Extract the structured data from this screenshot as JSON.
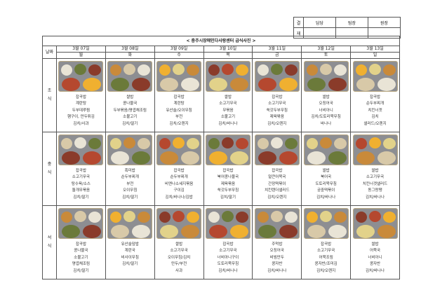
{
  "approval": {
    "label1": "결",
    "label2": "재",
    "cols": [
      "담당",
      "팀장",
      "원장"
    ]
  },
  "title": "< 충주시장애인다사랑센터 급식사진 >",
  "date_label": "날짜",
  "days": [
    {
      "date": "3월 07일",
      "dow": "월"
    },
    {
      "date": "3월 08일",
      "dow": "화"
    },
    {
      "date": "3월 09일",
      "dow": "수"
    },
    {
      "date": "3월 10일",
      "dow": "목"
    },
    {
      "date": "3월 11일",
      "dow": "금"
    },
    {
      "date": "3월 12일",
      "dow": "토"
    },
    {
      "date": "3월 13일",
      "dow": "일"
    }
  ],
  "meals": [
    {
      "name": "조\n식",
      "menus": [
        [
          "잡곡밥",
          "계란탕",
          "두부데루찜",
          "햄구이, 만두튀김",
          "김치/사과"
        ],
        [
          "쌀밥",
          "콩나물국",
          "두부볶음/명엽채조림",
          "소불고기",
          "김치/딸기"
        ],
        [
          "잡곡밥",
          "계란탕",
          "유산슬/오이무침",
          "부전",
          "김치/오렌지"
        ],
        [
          "쌀밥",
          "소고기무국",
          "무볶음",
          "소불고기",
          "김치/바나나"
        ],
        [
          "잡곡밥",
          "소고기무국",
          "쑥갓두부무침",
          "제육볶음",
          "김치/오렌지"
        ],
        [
          "쌀밥",
          "오징어국",
          "너비아니",
          "김치/도토리묵무침",
          "바나나"
        ],
        [
          "잡곡밥",
          "순두부찌개",
          "치킨너겟",
          "김치",
          "샐러드/오렌지"
        ]
      ]
    },
    {
      "name": "중\n식",
      "menus": [
        [
          "잡곡밥",
          "소고기무국",
          "탕수육/소스",
          "돌개무볶음",
          "김치/딸기"
        ],
        [
          "흑미밥",
          "순두부찌개",
          "부전",
          "오이무침",
          "김치/딸기"
        ],
        [
          "잡곡밥",
          "순두부찌개",
          "비엔나소세지볶음",
          "구이김",
          "김치/바나나/김밥"
        ],
        [
          "잡곡밥",
          "북어콩나물국",
          "제육볶음",
          "쑥갓두부무침",
          "김치/딸기"
        ],
        [
          "잡곡밥",
          "얼큰어묵국",
          "간장떡볶이",
          "치킨텐더샐러드",
          "김치/오렌지"
        ],
        [
          "쌀밥",
          "북어국",
          "도토리묵무침",
          "궁중떡볶이",
          "김치/바나나"
        ],
        [
          "쌀밥",
          "소고기무국",
          "치킨너겟샐러드",
          "동그랑땡",
          "김치/바나나"
        ]
      ]
    },
    {
      "name": "석\n식",
      "menus": [
        [
          "잡곡밥",
          "콩나물국",
          "소불고기",
          "명엽채조림",
          "김치/딸기"
        ],
        [
          "유산슬덮밥",
          "계란국",
          "비사이무침",
          "김치/딸기"
        ],
        [
          "쌀밥",
          "소고기무국",
          "오이무침/김치",
          "만두/부전",
          "사과"
        ],
        [
          "잡곡밥",
          "소고기무국",
          "너비아니구이",
          "도토리묵무침",
          "김치/바나나"
        ],
        [
          "주먹밥",
          "오징어국",
          "비빔만두",
          "콩자반",
          "김치/바나나"
        ],
        [
          "잡곡밥",
          "소고기무국",
          "어묵조림",
          "콩자반/조미김",
          "김치/오렌지"
        ],
        [
          "쌀밥",
          "어묵국",
          "너비아니",
          "콩자반",
          "김치/바나나"
        ]
      ]
    }
  ]
}
